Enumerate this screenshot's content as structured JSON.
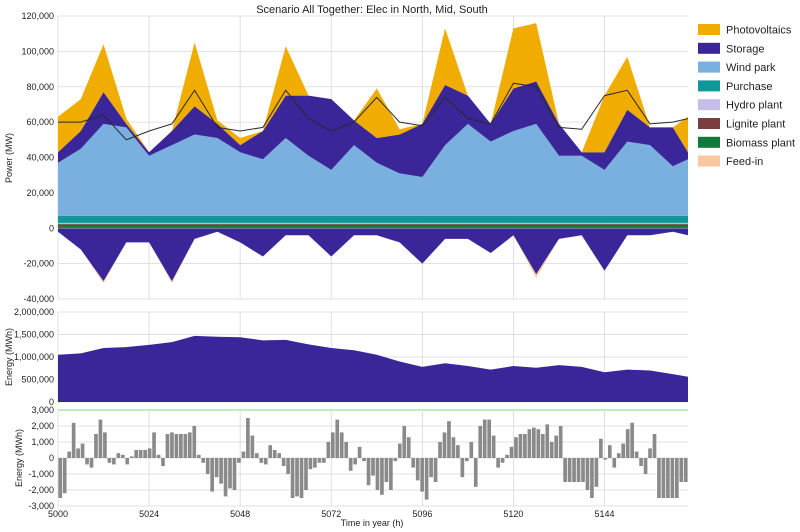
{
  "chart_data": [
    {
      "id": "power",
      "type": "area",
      "title": "Scenario All Together: Elec in North, Mid, South",
      "ylabel": "Power (MW)",
      "xlim": [
        5000,
        5166
      ],
      "ylim": [
        -40000,
        120000
      ],
      "yticks": [
        -40000,
        -20000,
        0,
        20000,
        40000,
        60000,
        80000,
        100000,
        120000
      ],
      "ytick_labels": [
        "-40,000",
        "-20,000",
        "0",
        "20,000",
        "40,000",
        "60,000",
        "80,000",
        "100,000",
        "120,000"
      ],
      "grid": true,
      "legend_position": "right",
      "colors": {
        "Photovoltaics": "#f0ad00",
        "Storage": "#3a2699",
        "Wind park": "#7ab0df",
        "Purchase": "#10979a",
        "Hydro plant": "#c8bde8",
        "Lignite plant": "#7a3e3e",
        "Biomass plant": "#0f7a3a",
        "Feed-in": "#f7c7a0",
        "demand_line": "#2a2a2a"
      },
      "legend": [
        "Photovoltaics",
        "Storage",
        "Wind park",
        "Purchase",
        "Hydro plant",
        "Lignite plant",
        "Biomass plant",
        "Feed-in"
      ],
      "x": [
        5000,
        5006,
        5012,
        5018,
        5024,
        5030,
        5036,
        5042,
        5048,
        5054,
        5060,
        5066,
        5072,
        5078,
        5084,
        5090,
        5096,
        5102,
        5108,
        5114,
        5120,
        5126,
        5132,
        5138,
        5144,
        5150,
        5156,
        5162,
        5166
      ],
      "series": [
        {
          "name": "Biomass plant",
          "values": [
            2000,
            2000,
            2000,
            2000,
            2000,
            2000,
            2000,
            2000,
            2000,
            2000,
            2000,
            2000,
            2000,
            2000,
            2000,
            2000,
            2000,
            2000,
            2000,
            2000,
            2000,
            2000,
            2000,
            2000,
            2000,
            2000,
            2000,
            2000,
            2000
          ]
        },
        {
          "name": "Lignite plant",
          "values": [
            500,
            500,
            500,
            500,
            500,
            500,
            500,
            500,
            500,
            500,
            500,
            500,
            500,
            500,
            500,
            500,
            500,
            500,
            500,
            500,
            500,
            500,
            500,
            500,
            500,
            500,
            500,
            500,
            500
          ]
        },
        {
          "name": "Hydro plant",
          "values": [
            500,
            500,
            500,
            500,
            500,
            500,
            500,
            500,
            500,
            500,
            500,
            500,
            500,
            500,
            500,
            500,
            500,
            500,
            500,
            500,
            500,
            500,
            500,
            500,
            500,
            500,
            500,
            500,
            500
          ]
        },
        {
          "name": "Purchase",
          "values": [
            4000,
            4000,
            4000,
            4000,
            4000,
            4000,
            4000,
            4000,
            4000,
            4000,
            4000,
            4000,
            4000,
            4000,
            4000,
            4000,
            4000,
            4000,
            4000,
            4000,
            4000,
            4000,
            4000,
            4000,
            4000,
            4000,
            4000,
            4000,
            4000
          ]
        },
        {
          "name": "Wind park",
          "values": [
            30000,
            38000,
            52000,
            50000,
            34000,
            40000,
            46000,
            44000,
            36000,
            32000,
            44000,
            34000,
            26000,
            40000,
            30000,
            24000,
            22000,
            40000,
            52000,
            42000,
            48000,
            52000,
            34000,
            34000,
            26000,
            42000,
            40000,
            28000,
            32000
          ]
        },
        {
          "name": "Storage",
          "values": [
            6000,
            10000,
            18000,
            2000,
            2000,
            8000,
            16000,
            8000,
            4000,
            16000,
            24000,
            34000,
            40000,
            14000,
            14000,
            22000,
            30000,
            34000,
            16000,
            10000,
            24000,
            24000,
            18000,
            2000,
            10000,
            18000,
            10000,
            22000,
            4000
          ]
        },
        {
          "name": "Photovoltaics",
          "values": [
            20000,
            18000,
            27000,
            3000,
            0,
            0,
            36000,
            2000,
            4000,
            0,
            28000,
            0,
            0,
            0,
            28000,
            3000,
            0,
            32000,
            0,
            0,
            34000,
            33000,
            0,
            0,
            32000,
            30000,
            0,
            0,
            20000
          ]
        }
      ],
      "negative_series": [
        {
          "name": "Storage",
          "values": [
            -2000,
            -12000,
            -30000,
            -8000,
            -8000,
            -30000,
            -6000,
            -2000,
            -8000,
            -16000,
            -4000,
            -4000,
            -16000,
            -4000,
            -4000,
            -8000,
            -20000,
            -6000,
            -6000,
            -14000,
            -4000,
            -26000,
            -6000,
            -4000,
            -24000,
            -4000,
            -4000,
            -2000,
            -4000
          ]
        },
        {
          "name": "Feed-in",
          "values": [
            0,
            0,
            -1000,
            0,
            0,
            -1000,
            0,
            0,
            0,
            0,
            0,
            0,
            0,
            0,
            0,
            0,
            0,
            0,
            0,
            0,
            0,
            -2000,
            0,
            0,
            0,
            0,
            0,
            0,
            0
          ]
        }
      ],
      "demand": [
        60000,
        60000,
        64000,
        50000,
        55000,
        59000,
        78000,
        57000,
        55000,
        57000,
        78000,
        62000,
        55000,
        60000,
        74000,
        60000,
        58000,
        74000,
        62000,
        59000,
        82000,
        80000,
        57000,
        56000,
        75000,
        78000,
        59000,
        60000,
        62000
      ]
    },
    {
      "id": "energy",
      "type": "area",
      "ylabel": "Energy (MWh)",
      "xlim": [
        5000,
        5166
      ],
      "ylim": [
        0,
        2000000
      ],
      "yticks": [
        0,
        500000,
        1000000,
        1500000,
        2000000
      ],
      "ytick_labels": [
        "0",
        "500,000",
        "1,000,000",
        "1,500,000",
        "2,000,000"
      ],
      "grid": true,
      "color": "#3a2699",
      "x": [
        5000,
        5006,
        5012,
        5018,
        5024,
        5030,
        5036,
        5042,
        5048,
        5054,
        5060,
        5066,
        5072,
        5078,
        5084,
        5090,
        5096,
        5102,
        5108,
        5114,
        5120,
        5126,
        5132,
        5138,
        5144,
        5150,
        5156,
        5162,
        5166
      ],
      "values": [
        1050000,
        1080000,
        1200000,
        1220000,
        1270000,
        1330000,
        1470000,
        1450000,
        1440000,
        1370000,
        1380000,
        1280000,
        1200000,
        1150000,
        1050000,
        900000,
        780000,
        860000,
        800000,
        720000,
        800000,
        760000,
        820000,
        780000,
        660000,
        720000,
        700000,
        620000,
        560000
      ]
    },
    {
      "id": "hourly",
      "type": "bar",
      "ylabel": "Energy (MWh)",
      "xlabel": "Time in year (h)",
      "xlim": [
        5000,
        5166
      ],
      "ylim": [
        -3000,
        3000
      ],
      "yticks": [
        -3000,
        -2000,
        -1000,
        0,
        1000,
        2000,
        3000
      ],
      "ytick_labels": [
        "-3,000",
        "-2,000",
        "-1,000",
        "0",
        "1,000",
        "2,000",
        "3,000"
      ],
      "xticks": [
        5000,
        5024,
        5048,
        5072,
        5096,
        5120,
        5144
      ],
      "xtick_labels": [
        "5000",
        "5024",
        "5048",
        "5072",
        "5096",
        "5120",
        "5144"
      ],
      "grid": true,
      "color": "#8a8a8a",
      "reference_line_color": "#9be09b",
      "x_start": 5000,
      "values": [
        -2500,
        -2200,
        400,
        2200,
        600,
        900,
        -400,
        -600,
        1500,
        2400,
        1600,
        -300,
        -400,
        300,
        200,
        -400,
        100,
        500,
        500,
        500,
        600,
        1600,
        200,
        -500,
        1500,
        1600,
        1500,
        1500,
        1500,
        1600,
        2000,
        200,
        -300,
        -1000,
        -2100,
        -1200,
        -1600,
        -2400,
        -1900,
        -2000,
        -300,
        400,
        2500,
        1400,
        300,
        -300,
        -400,
        800,
        500,
        300,
        -500,
        -1000,
        -2500,
        -2400,
        -2500,
        -2000,
        -700,
        -600,
        -300,
        -300,
        1000,
        1600,
        2400,
        1600,
        1000,
        -800,
        -400,
        700,
        -200,
        -1700,
        -1100,
        -2000,
        -2300,
        -1500,
        -2000,
        -200,
        900,
        2000,
        1300,
        -600,
        -1400,
        -2100,
        -2600,
        -1200,
        -1500,
        1000,
        1600,
        2300,
        1300,
        800,
        -1200,
        -200,
        1000,
        -1800,
        2000,
        2400,
        2400,
        1400,
        -600,
        -300,
        200,
        700,
        1300,
        1500,
        1500,
        1800,
        1900,
        1800,
        1500,
        2100,
        1000,
        1400,
        2000,
        -1500,
        -1500,
        -1500,
        -1500,
        -1500,
        -2000,
        -2500,
        -1800,
        1200,
        -100,
        800,
        -600,
        300,
        900,
        1800,
        2200,
        400,
        -500,
        -1000,
        600,
        1500,
        -2500,
        -2500,
        -2500,
        -2500,
        -2500,
        -1500,
        -1500
      ]
    }
  ]
}
